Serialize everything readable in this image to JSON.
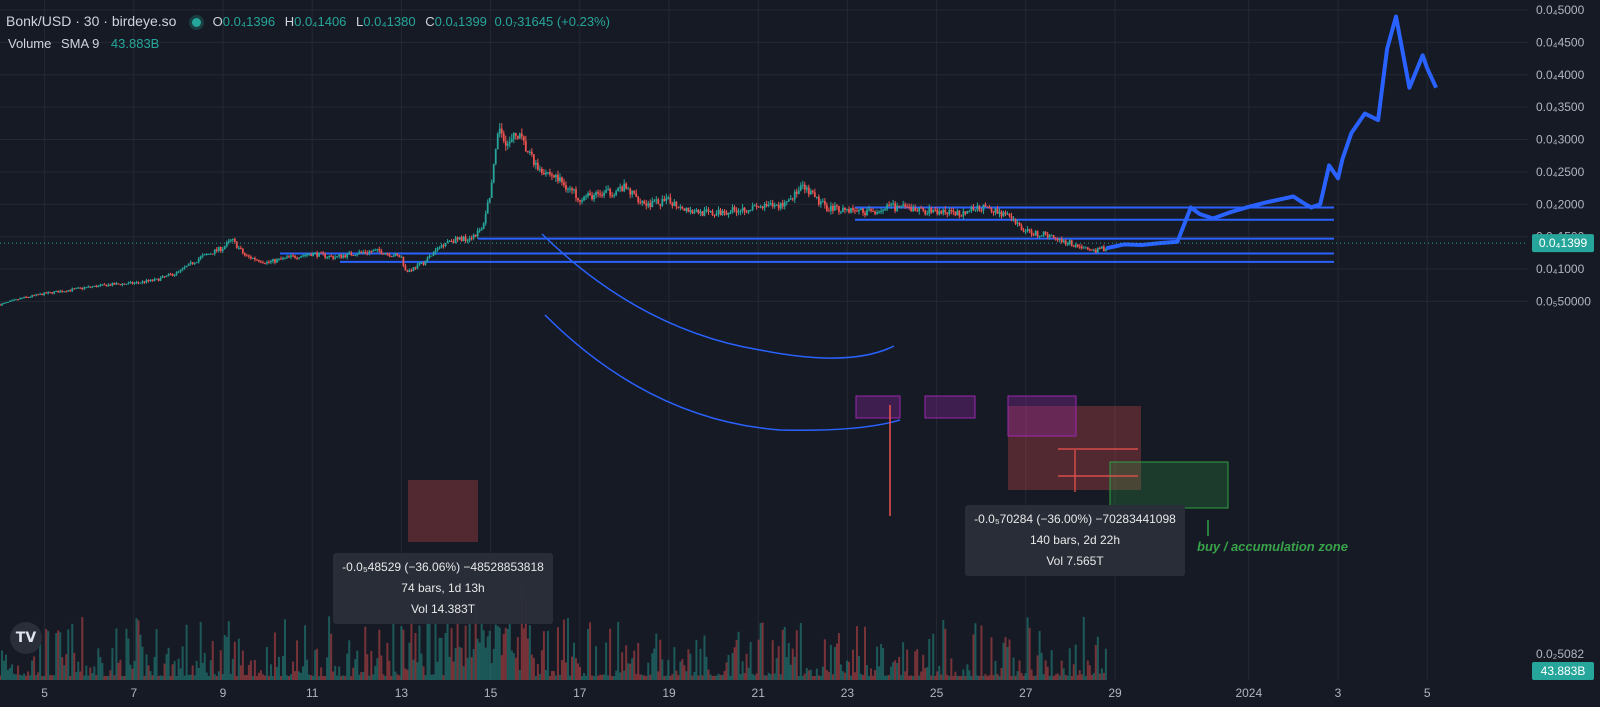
{
  "legend": {
    "symbol": "Bonk/USD · 30 · birdeye.so",
    "open_label": "O",
    "open_value": "0.0₄1396",
    "high_label": "H",
    "high_value": "0.0₄1406",
    "low_label": "L",
    "low_value": "0.0₄1380",
    "close_label": "C",
    "close_value": "0.0₄1399",
    "change": "0.0₇31645 (+0.23%)",
    "volume_label": "Volume",
    "volume_sma": "SMA 9",
    "volume_value": "43.883B"
  },
  "logo": "TV",
  "price_badge": "0.0₄1399",
  "volume_badge": "43.883B",
  "measure_1": {
    "line1": "-0.0₅48529 (−36.06%) −48528853818",
    "line2": "74 bars, 1d 13h",
    "line3": "Vol 14.383T"
  },
  "measure_2": {
    "line1": "-0.0₅70284 (−36.00%) −70283441098",
    "line2": "140 bars, 2d 22h",
    "line3": "Vol 7.565T"
  },
  "zone_label": "buy / accumulation zone",
  "colors": {
    "up": "#26a69a",
    "down": "#ef5350",
    "projection": "#2962ff",
    "levels": "#2962ff",
    "background": "#161a25"
  },
  "chart_data": {
    "type": "line",
    "ylim": [
      4.5e-06,
      5e-05
    ],
    "y_ticks": [
      5e-05,
      4.5e-05,
      4e-05,
      3.5e-05,
      3e-05,
      2.5e-05,
      2e-05,
      1.5e-05,
      1e-05,
      5e-06
    ],
    "y_tick_labels": [
      "0.0₄5000",
      "0.0₄4500",
      "0.0₄4000",
      "0.0₄3500",
      "0.0₄3000",
      "0.0₄2500",
      "0.0₄2000",
      "0.0₄1500",
      "0.0₄1000",
      "0.0₅50000"
    ],
    "volume_tick_label": "0.0₂5082",
    "x_tick_labels": [
      "5",
      "7",
      "9",
      "11",
      "13",
      "15",
      "17",
      "19",
      "21",
      "23",
      "25",
      "27",
      "29",
      "2024",
      "3",
      "5"
    ],
    "x_tick_days": [
      5,
      7,
      9,
      11,
      13,
      15,
      17,
      19,
      21,
      23,
      25,
      27,
      29,
      32,
      34,
      36
    ],
    "series": [
      {
        "x": [
          4.0,
          4.5,
          5.0,
          5.5,
          6.0,
          6.5,
          7.0,
          7.5,
          8.0,
          8.5,
          9.0,
          9.2,
          9.5,
          10.0,
          10.5,
          11.0,
          11.5,
          12.0,
          12.5,
          13.0,
          13.1,
          13.5,
          14.0,
          14.5,
          14.8,
          15.0,
          15.2,
          15.4,
          15.6,
          16.0,
          16.5,
          17.0,
          17.5,
          18.0,
          18.5,
          19.0,
          19.5,
          20.0,
          20.5,
          21.0,
          21.5,
          22.0,
          22.1,
          22.5,
          23.0,
          23.5,
          24.0,
          24.5,
          25.0,
          25.5,
          26.0,
          26.5,
          27.0,
          27.5,
          28.0,
          28.5,
          28.8
        ],
        "y": [
          4.5e-06,
          5.5e-06,
          6.2e-06,
          6.7e-06,
          7.2e-06,
          7.6e-06,
          7.8e-06,
          8.3e-06,
          9.5e-06,
          1.18e-05,
          1.33e-05,
          1.45e-05,
          1.2e-05,
          1.1e-05,
          1.18e-05,
          1.24e-05,
          1.18e-05,
          1.25e-05,
          1.28e-05,
          1.18e-05,
          9.5e-06,
          1.1e-05,
          1.43e-05,
          1.48e-05,
          1.6e-05,
          2.2e-05,
          3.2e-05,
          2.9e-05,
          3.1e-05,
          2.6e-05,
          2.4e-05,
          2.1e-05,
          2.15e-05,
          2.25e-05,
          2e-05,
          2.05e-05,
          1.9e-05,
          1.85e-05,
          1.92e-05,
          1.95e-05,
          1.98e-05,
          2.25e-05,
          2.2e-05,
          1.96e-05,
          1.92e-05,
          1.88e-05,
          1.96e-05,
          1.92e-05,
          1.88e-05,
          1.86e-05,
          1.95e-05,
          1.86e-05,
          1.58e-05,
          1.52e-05,
          1.4e-05,
          1.28e-05,
          1.32e-05
        ]
      },
      {
        "x": [
          28.8,
          29.2,
          29.6,
          30.0,
          30.4,
          30.7,
          30.9,
          31.2,
          31.6,
          32.0,
          32.4,
          32.8,
          33.0,
          33.2,
          33.4,
          33.6,
          33.8,
          34.0,
          34.1,
          34.3,
          34.6,
          34.9,
          35.1,
          35.3,
          35.6,
          35.9,
          36.0,
          36.2
        ],
        "y": [
          1.32e-05,
          1.38e-05,
          1.37e-05,
          1.4e-05,
          1.42e-05,
          1.95e-05,
          1.85e-05,
          1.78e-05,
          1.88e-05,
          1.96e-05,
          2.03e-05,
          2.09e-05,
          2.12e-05,
          2.03e-05,
          1.95e-05,
          2e-05,
          2.6e-05,
          2.4e-05,
          2.7e-05,
          3.1e-05,
          3.4e-05,
          3.3e-05,
          4.4e-05,
          4.9e-05,
          3.8e-05,
          4.3e-05,
          4.1e-05,
          3.8e-05
        ]
      }
    ],
    "levels": [
      1.95e-05,
      1.76e-05,
      1.47e-05,
      1.24e-05,
      1.11e-05
    ]
  }
}
